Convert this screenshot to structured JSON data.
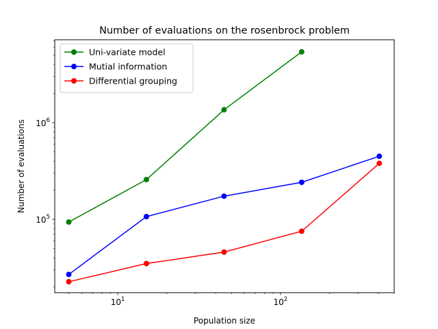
{
  "chart_data": {
    "type": "line",
    "title": "Number of evaluations on the rosenbrock problem",
    "xlabel": "Population size",
    "ylabel": "Number of evaluations",
    "xscale": "log",
    "yscale": "log",
    "xlim": [
      4.1,
      500
    ],
    "ylim": [
      17500,
      7200000
    ],
    "xticks": [
      {
        "value": 10,
        "base": "10",
        "exp": "1"
      },
      {
        "value": 100,
        "base": "10",
        "exp": "2"
      }
    ],
    "yticks": [
      {
        "value": 100000,
        "base": "10",
        "exp": "5"
      },
      {
        "value": 1000000,
        "base": "10",
        "exp": "6"
      }
    ],
    "legend_position": "top-left",
    "grid": false,
    "series": [
      {
        "name": "Uni-variate model",
        "color": "#008000",
        "points": [
          [
            5,
            94000
          ],
          [
            15,
            258000
          ],
          [
            45,
            1360000
          ],
          [
            135,
            5400000
          ]
        ]
      },
      {
        "name": "Mutial information",
        "color": "#0000ff",
        "points": [
          [
            5,
            27000
          ],
          [
            15,
            107000
          ],
          [
            45,
            174000
          ],
          [
            135,
            242000
          ],
          [
            405,
            450000
          ]
        ]
      },
      {
        "name": "Differential grouping",
        "color": "#ff0000",
        "points": [
          [
            5,
            22700
          ],
          [
            15,
            35000
          ],
          [
            45,
            46000
          ],
          [
            135,
            75500
          ],
          [
            405,
            380000
          ]
        ]
      }
    ]
  }
}
